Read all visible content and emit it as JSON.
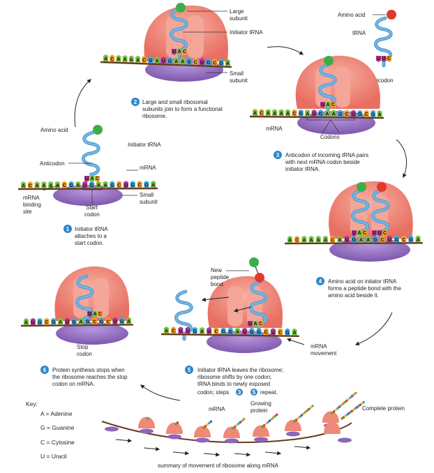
{
  "labels": {
    "large_subunit": [
      "Large",
      "subunit"
    ],
    "initiator_trna_top": "Initiator tRNA",
    "small_subunit_top": [
      "Small",
      "subunit"
    ],
    "amino_acid_tr": "Amino acid",
    "trna_tr": "tRNA",
    "anticodon_tr": "Anticodon",
    "mrna_s3": "mRNA",
    "codons_s3": "Codons",
    "amino_acid_left": "Amino acid",
    "initiator_trna_left": "Initiator tRNA",
    "anticodon_left": "Anticodon",
    "mrna_left": "mRNA",
    "mrna_binding_site": [
      "mRNA",
      "binding",
      "site"
    ],
    "start_codon": [
      "Start",
      "codon"
    ],
    "small_subunit_left": [
      "Small",
      "subunit"
    ],
    "new_peptide_bond": [
      "New",
      "peptide",
      "bond"
    ],
    "mrna_movement": [
      "mRNA",
      "movement"
    ],
    "stop_codon": [
      "Stop",
      "codon"
    ],
    "summary_mrna": "mRNA",
    "growing_protein": [
      "Growing",
      "protein"
    ],
    "complete_protein": "Complete protein",
    "summary_caption": "summary of movement of ribosome along mRNA"
  },
  "steps": [
    {
      "num": "1",
      "lines": [
        "Initiator tRNA",
        "attaches to a",
        "start codon."
      ]
    },
    {
      "num": "2",
      "lines": [
        "Large and small ribosomal",
        "subunits join to form a functional",
        "ribosome."
      ]
    },
    {
      "num": "3",
      "lines": [
        "Anticodon of incoming tRNA pairs",
        "with next mRNA codon beside",
        "initiator tRNA."
      ]
    },
    {
      "num": "4",
      "lines": [
        "Amino acid on initator tRNA",
        "forms a peptide bond with the",
        "amino acid beside it."
      ]
    },
    {
      "num": "5",
      "lines": [
        "Initiator tRNA leaves the ribosome;",
        "ribosome shifts by one codon;",
        "tRNA binds to newly exposed",
        "codon; steps",
        "repeat."
      ],
      "ref_a": "3",
      "ref_b": "5"
    },
    {
      "num": "6",
      "lines": [
        "Protein synthesis stops when",
        "the ribosome reaches the stop",
        "codon on mRNA."
      ]
    }
  ],
  "key": {
    "title": "Key:",
    "items": [
      "A = Adenine",
      "G = Guanine",
      "C = Cytosine",
      "U = Uracil"
    ]
  },
  "sequences": {
    "p1": "ACAAAACGAUGAAGCUGCGA",
    "p2": "ACAAAACGAUGAAGCUGCGA",
    "p3": "ACAAAACGAUGAAGCUGCGA",
    "p4": "ACAAAACAUGAAGCUGCGA",
    "p5": "ACUUGAUCGGAUGGCUCGA",
    "p6": "AUGCGAUGAGCGCUGA"
  },
  "pairs": {
    "p1_anticodon": "UAC",
    "p2_anticodon": "UAC",
    "p3_anticodons": [
      "UAC",
      "UUC"
    ],
    "p4_anticodons": [
      "UAC",
      "UUC"
    ],
    "p5_anticodon": "UAC",
    "tr_anticodon": "UUC"
  },
  "colors": {
    "A": "#7dc242",
    "G": "#3da8d8",
    "C": "#f0a02a",
    "U": "#b03a8c",
    "ribosome_large": "#f08878",
    "ribosome_small": "#8e66b8",
    "trna": "#5aa2d6",
    "mrna": "#6a3a1e",
    "step_badge": "#2f86c8",
    "amino_acid_green": "#3cae49",
    "amino_acid_red": "#e03a2e"
  }
}
